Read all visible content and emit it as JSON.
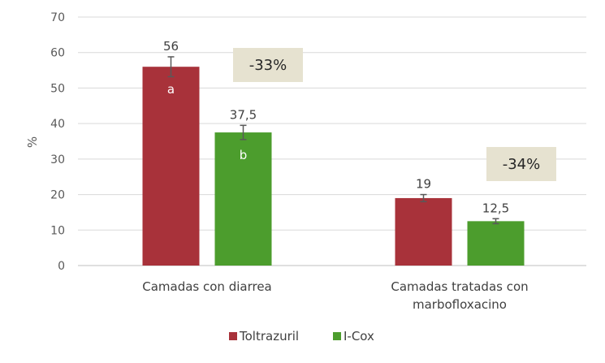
{
  "chart_data": {
    "type": "bar",
    "ylabel": "%",
    "ylim": [
      0,
      70
    ],
    "yticks": [
      "0",
      "10",
      "20",
      "30",
      "40",
      "50",
      "60",
      "70"
    ],
    "grid": true,
    "legend_position": "bottom",
    "categories": [
      [
        "Camadas con diarrea"
      ],
      [
        "Camadas tratadas con",
        "marbofloxacino"
      ]
    ],
    "series": [
      {
        "name": "Toltrazuril",
        "color": "#a8323a",
        "values": [
          56,
          19
        ],
        "labels": [
          "56",
          "19"
        ],
        "error": [
          2.8,
          1.0
        ],
        "significance": [
          "a",
          ""
        ]
      },
      {
        "name": "I-Cox",
        "color": "#4c9d2d",
        "values": [
          37.5,
          12.5
        ],
        "labels": [
          "37,5",
          "12,5"
        ],
        "error": [
          2.0,
          0.7
        ],
        "significance": [
          "b",
          ""
        ]
      }
    ],
    "annotations": [
      "-33%",
      "-34%"
    ],
    "callout_color": "#e6e2d0"
  }
}
